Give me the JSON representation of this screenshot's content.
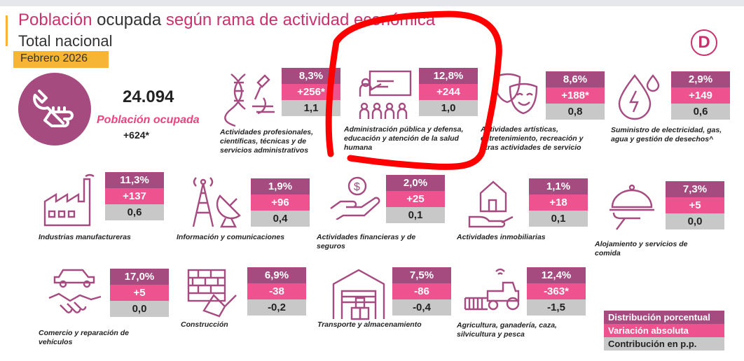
{
  "header": {
    "title_pink_1": "Población",
    "title_dark": " ocupada ",
    "title_pink_2": "según rama de actividad económica",
    "subtitle": "Total nacional",
    "date": "Febrero 2026",
    "logo_letter": "D"
  },
  "total": {
    "value": "24.094",
    "label": "Población ocupada",
    "variation": "+624*"
  },
  "sectors": [
    {
      "d": "8,3%",
      "v": "+256*",
      "c": "1,1",
      "label": "Actividades profesionales, científicas, técnicas y de servicios administrativos",
      "icon": "dna-microscope-icon"
    },
    {
      "d": "12,8%",
      "v": "+244",
      "c": "1,0",
      "label": "Administración pública y defensa, educación y atención de la salud humana",
      "icon": "teacher-classroom-icon"
    },
    {
      "d": "8,6%",
      "v": "+188*",
      "c": "0,8",
      "label": "Actividades artísticas, entretenimiento, recreación y otras actividades de servicio",
      "icon": "theater-masks-icon"
    },
    {
      "d": "2,9%",
      "v": "+149",
      "c": "0,6",
      "label": "Suministro de electricidad, gas, agua y gestión de desechos^",
      "icon": "water-electricity-icon"
    },
    {
      "d": "11,3%",
      "v": "+137",
      "c": "0,6",
      "label": "Industrias manufactureras",
      "icon": "factory-icon"
    },
    {
      "d": "1,9%",
      "v": "+96",
      "c": "0,4",
      "label": "Información y comunicaciones",
      "icon": "antenna-satellite-icon"
    },
    {
      "d": "2,0%",
      "v": "+25",
      "c": "0,1",
      "label": "Actividades financieras y de seguros",
      "icon": "hand-coin-icon"
    },
    {
      "d": "1,1%",
      "v": "+18",
      "c": "0,1",
      "label": "Actividades inmobiliarias",
      "icon": "house-hand-icon"
    },
    {
      "d": "7,3%",
      "v": "+5",
      "c": "0,0",
      "label": "Alojamiento y servicios de comida",
      "icon": "food-cloche-icon"
    },
    {
      "d": "17,0%",
      "v": "+5",
      "c": "0,0",
      "label": "Comercio y reparación de vehículos",
      "icon": "car-handshake-icon"
    },
    {
      "d": "6,9%",
      "v": "-38",
      "c": "-0,2",
      "label": "Construcción",
      "icon": "brick-trowel-icon"
    },
    {
      "d": "7,5%",
      "v": "-86",
      "c": "-0,4",
      "label": "Transporte y almacenamiento",
      "icon": "warehouse-icon"
    },
    {
      "d": "12,4%",
      "v": "-363*",
      "c": "-1,5",
      "label": "Agricultura, ganadería, caza, silvicultura y pesca",
      "icon": "tractor-field-icon"
    }
  ],
  "legend": {
    "distribution": "Distribución porcentual",
    "variation": "Variación absoluta",
    "contribution": "Contribución en p.p."
  },
  "colors": {
    "distribution": "#a64b80",
    "variation": "#ee5390",
    "contribution": "#c8c8c8",
    "accent": "#c8336e",
    "date_highlight": "#f6b534",
    "annotation": "#ff0000"
  }
}
